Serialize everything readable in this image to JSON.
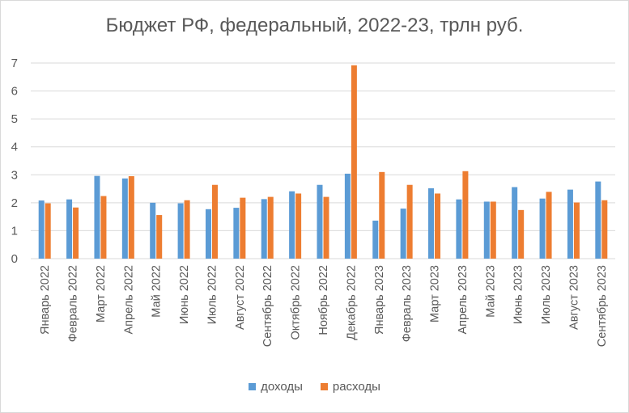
{
  "chart_data": {
    "type": "bar",
    "title": "Бюджет РФ, федеральный, 2022-23, трлн руб.",
    "categories": [
      "Январь 2022",
      "Февраль 2022",
      "Март 2022",
      "Апрель 2022",
      "Май 2022",
      "Июнь 2022",
      "Июль 2022",
      "Август 2022",
      "Сентябрь 2022",
      "Октябрь 2022",
      "Ноябрь 2022",
      "Декабрь 2022",
      "Январь 2023",
      "Февраль 2023",
      "Март 2023",
      "Апрель 2023",
      "Май 2023",
      "Июнь 2023",
      "Июль 2023",
      "Август 2023",
      "Сентябрь 2023"
    ],
    "series": [
      {
        "name": "доходы",
        "color": "#5b9bd5",
        "values": [
          2.08,
          2.12,
          2.96,
          2.87,
          2.0,
          1.98,
          1.77,
          1.82,
          2.13,
          2.41,
          2.64,
          3.04,
          1.36,
          1.79,
          2.52,
          2.12,
          2.04,
          2.56,
          2.15,
          2.47,
          2.76
        ]
      },
      {
        "name": "расходы",
        "color": "#ed7d31",
        "values": [
          1.98,
          1.83,
          2.24,
          2.95,
          1.56,
          2.09,
          2.64,
          2.18,
          2.21,
          2.33,
          2.21,
          6.92,
          3.1,
          2.64,
          2.33,
          3.13,
          2.04,
          1.74,
          2.39,
          2.01,
          2.09
        ]
      }
    ],
    "yticks": [
      "0",
      "1",
      "2",
      "3",
      "4",
      "5",
      "6",
      "7"
    ],
    "ylim": [
      0,
      7
    ],
    "grid": true,
    "legend_position": "bottom"
  }
}
